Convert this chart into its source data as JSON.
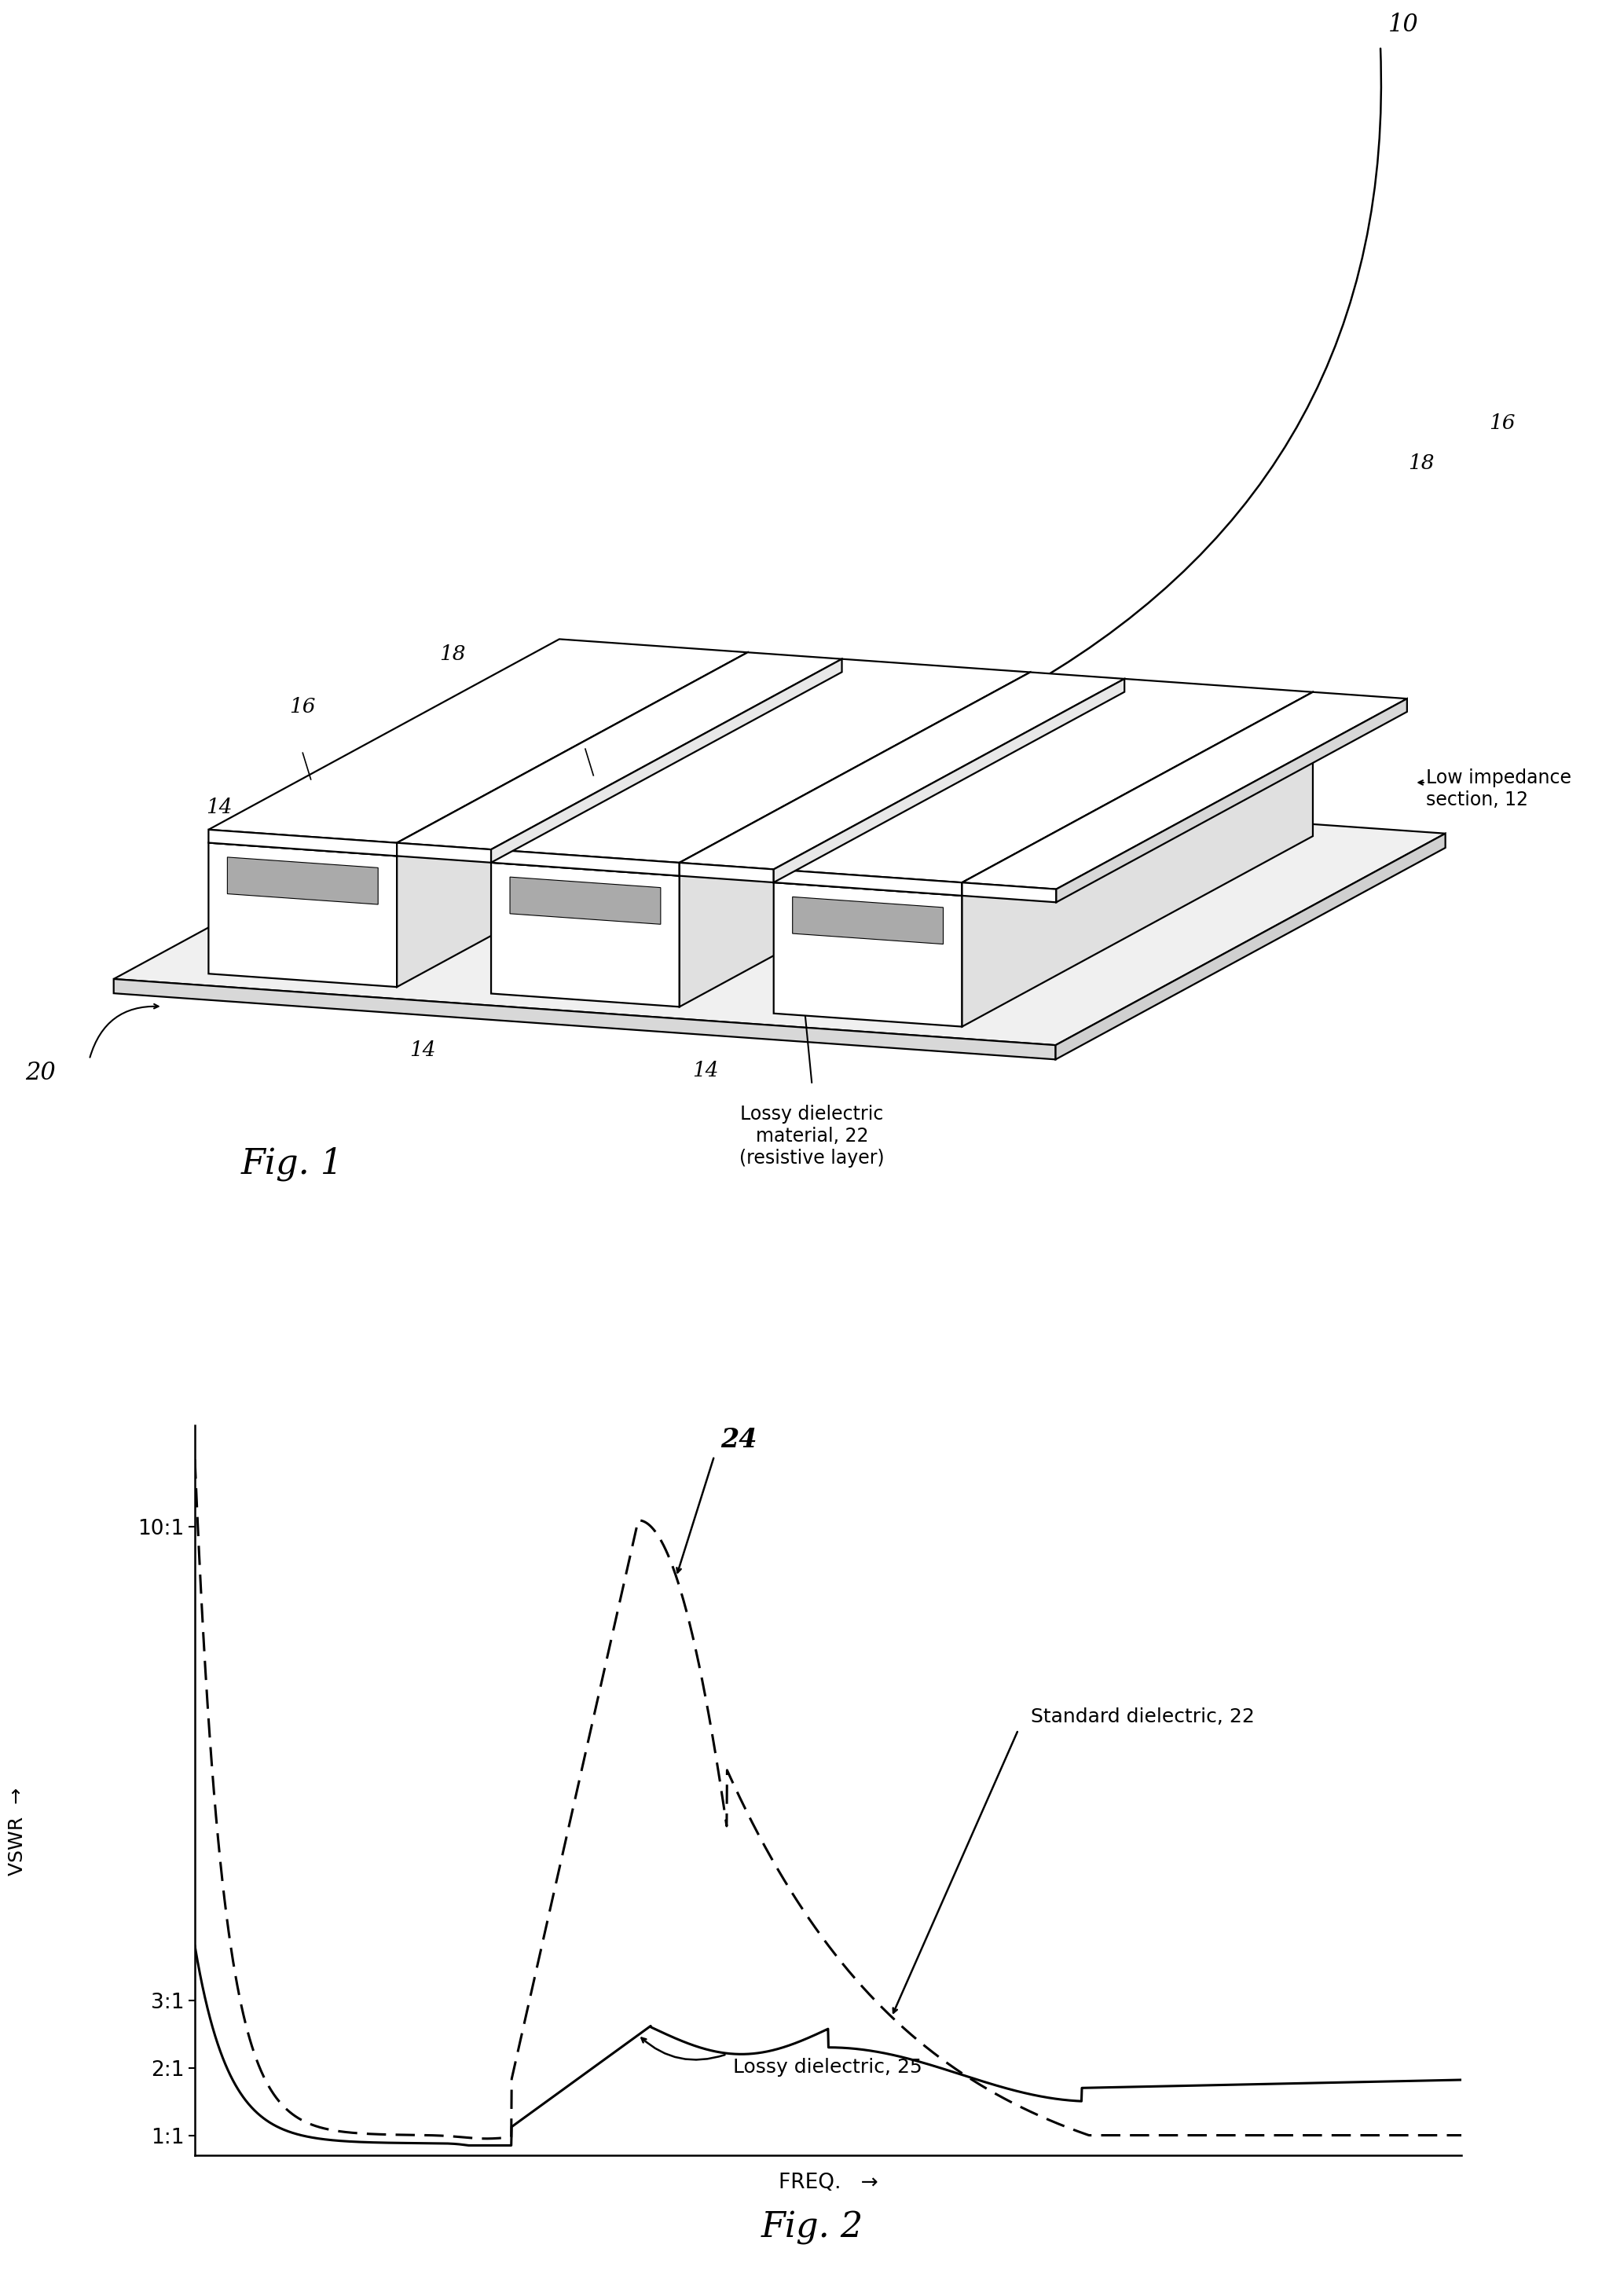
{
  "bg_color": "#ffffff",
  "fig_width": 20.67,
  "fig_height": 29.03,
  "fig1_label": "Fig. 1",
  "fig2_label": "Fig. 2",
  "ref_10": "10",
  "ref_12": "12",
  "ref_14": "14",
  "ref_16": "16",
  "ref_18": "18",
  "ref_20": "20",
  "ref_24": "24",
  "ref_25": "25",
  "label_low_impedance": "Low impedance\nsection, 12",
  "label_lossy_dielectric_fig1": "Lossy dielectric\nmaterial, 22\n(resistive layer)",
  "label_standard_dielectric": "Standard dielectric, 22",
  "label_lossy_dielectric2": "Lossy dielectric, 25",
  "xlabel": "FREQ.",
  "ylabel": "VSWR",
  "ytick_labels": [
    "1:1",
    "2:1",
    "3:1",
    "10:1"
  ],
  "ytick_vals": [
    1.0,
    2.0,
    3.0,
    10.0
  ]
}
